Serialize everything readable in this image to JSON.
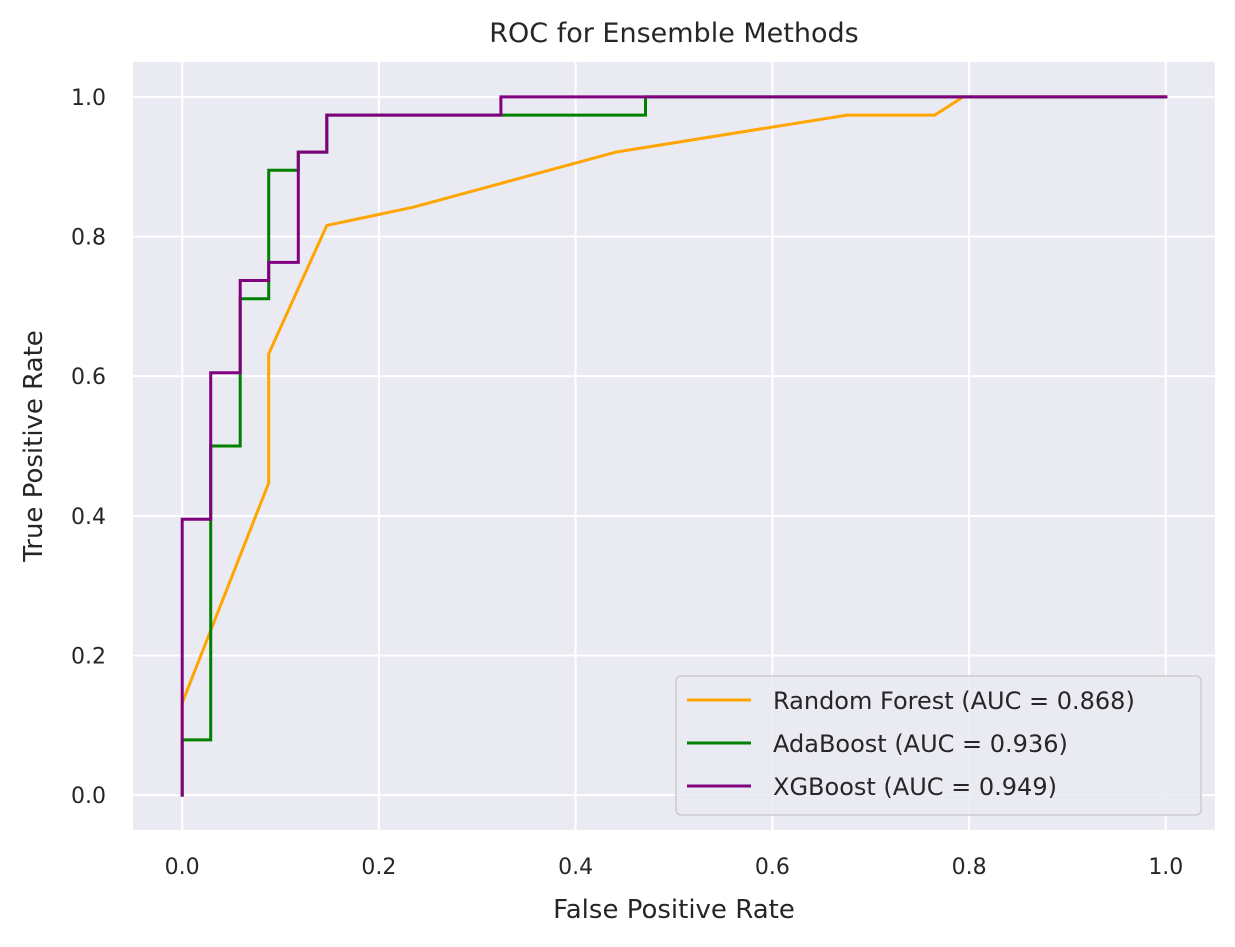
{
  "chart_data": {
    "type": "line",
    "title": "ROC for Ensemble Methods",
    "xlabel": "False Positive Rate",
    "ylabel": "True Positive Rate",
    "xlim": [
      -0.05,
      1.05
    ],
    "ylim": [
      -0.05,
      1.05
    ],
    "xticks": [
      0.0,
      0.2,
      0.4,
      0.6,
      0.8,
      1.0
    ],
    "xtick_labels": [
      "0.0",
      "0.2",
      "0.4",
      "0.6",
      "0.8",
      "1.0"
    ],
    "yticks": [
      0.0,
      0.2,
      0.4,
      0.6,
      0.8,
      1.0
    ],
    "ytick_labels": [
      "0.0",
      "0.2",
      "0.4",
      "0.6",
      "0.8",
      "1.0"
    ],
    "grid": true,
    "background": "#eaeaf2",
    "legend_position": "lower-right",
    "series": [
      {
        "name": "Random Forest (AUC = 0.868)",
        "color": "#ffa500",
        "x": [
          0.0,
          0.0,
          0.088,
          0.088,
          0.147,
          0.235,
          0.441,
          0.676,
          0.765,
          0.794,
          1.0
        ],
        "y": [
          0.0,
          0.132,
          0.447,
          0.632,
          0.816,
          0.842,
          0.921,
          0.974,
          0.974,
          1.0,
          1.0
        ]
      },
      {
        "name": "AdaBoost (AUC = 0.936)",
        "color": "#008000",
        "x": [
          0.0,
          0.0,
          0.029,
          0.029,
          0.059,
          0.059,
          0.088,
          0.088,
          0.118,
          0.118,
          0.147,
          0.147,
          0.471,
          0.471,
          1.0
        ],
        "y": [
          0.0,
          0.079,
          0.079,
          0.5,
          0.5,
          0.711,
          0.711,
          0.895,
          0.895,
          0.921,
          0.921,
          0.974,
          0.974,
          1.0,
          1.0
        ]
      },
      {
        "name": "XGBoost (AUC = 0.949)",
        "color": "#800080",
        "x": [
          0.0,
          0.0,
          0.029,
          0.029,
          0.059,
          0.059,
          0.088,
          0.088,
          0.118,
          0.118,
          0.147,
          0.147,
          0.324,
          0.324,
          1.0
        ],
        "y": [
          0.0,
          0.395,
          0.395,
          0.605,
          0.605,
          0.737,
          0.737,
          0.763,
          0.763,
          0.921,
          0.921,
          0.974,
          0.974,
          1.0,
          1.0
        ]
      }
    ]
  }
}
